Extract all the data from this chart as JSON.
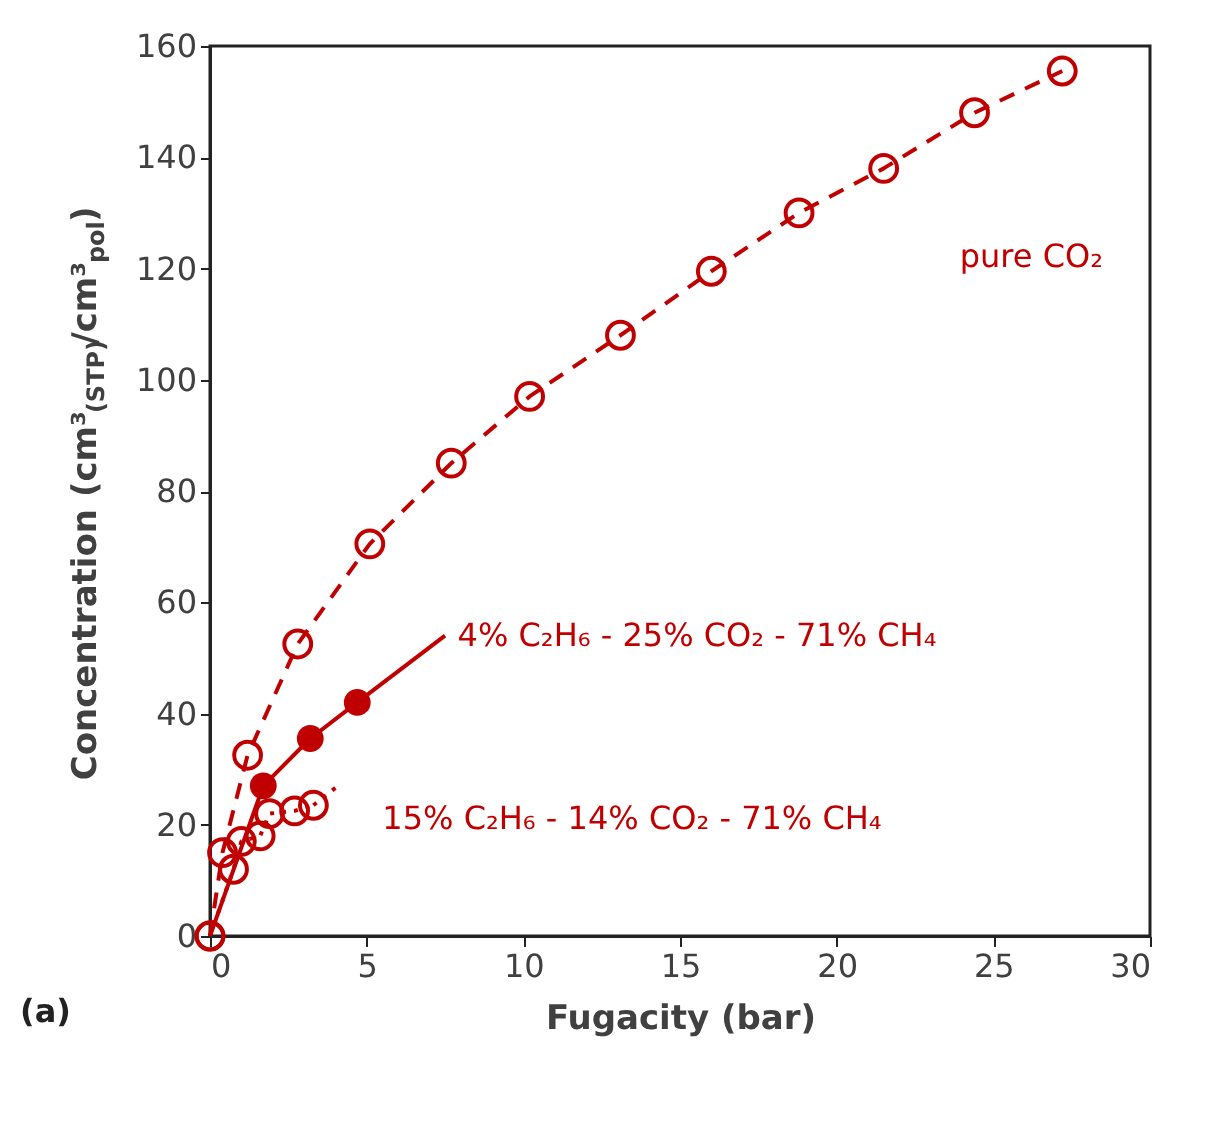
{
  "chart_data": {
    "type": "line",
    "xlabel": "Fugacity (bar)",
    "ylabel": "Concentration (cm³$_{(STP)}$/cm³$_{pol}$)",
    "xlim": [
      0,
      30
    ],
    "xticks": [
      0,
      5,
      10,
      15,
      20,
      25,
      30
    ],
    "ylim": [
      0,
      160
    ],
    "yticks": [
      0,
      20,
      40,
      60,
      80,
      100,
      120,
      140,
      160
    ],
    "grid": false,
    "annotations": [
      "(a)"
    ],
    "series": [
      {
        "name": "pure CO₂",
        "color": "#c00000",
        "marker": "circle",
        "line_style": "dashed",
        "x": [
          0,
          0.4,
          1.2,
          2.8,
          5.1,
          7.7,
          10.2,
          13.1,
          16,
          18.8,
          21.5,
          24.4,
          27.2
        ],
        "values": [
          0,
          15,
          32.5,
          52.5,
          70.5,
          85,
          97,
          108,
          119.5,
          130,
          138,
          148,
          155.5
        ]
      },
      {
        "type": "scatter",
        "color": "#c00000",
        "marker": "circle",
        "x": [
          1.7,
          3.2,
          4.7
        ],
        "values": [
          27,
          35.5,
          42
        ]
      },
      {
        "name": "4% C₂H₆ - 25% CO₂ - 71% CH₄",
        "color": "#c00000",
        "line_style": "solid",
        "x": [
          0,
          1.7,
          3.2,
          4.7,
          7.5
        ],
        "values": [
          0,
          27,
          35.5,
          42,
          54
        ]
      },
      {
        "name": "15% C₂H₆ - 14% CO₂ - 71% CH₄",
        "color": "#c00000",
        "marker": "circle",
        "line_style": "dotted",
        "x": [
          0,
          0.75,
          1.0,
          1.6,
          1.9,
          2.7,
          3.3
        ],
        "values": [
          0,
          12,
          17,
          18,
          22,
          22.5,
          23.5
        ]
      },
      {
        "color": "#c00000",
        "line_style": "dotted",
        "x": [
          3.3,
          4.2
        ],
        "values": [
          23.5,
          27.5
        ]
      }
    ]
  }
}
